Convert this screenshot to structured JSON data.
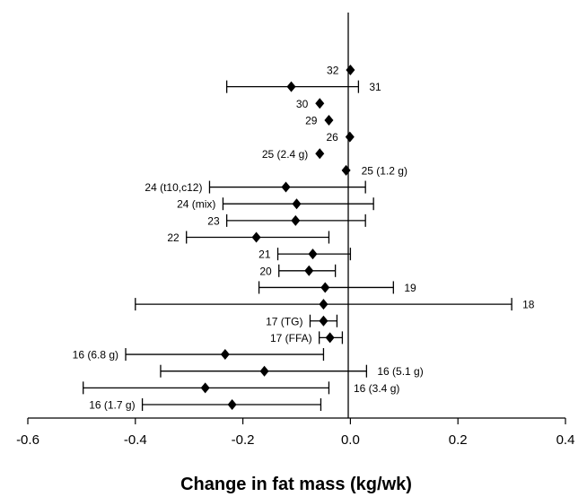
{
  "chart_data": {
    "type": "forest",
    "xlabel": "Change in fat mass (kg/wk)",
    "ylabel": "",
    "xlim": [
      -0.6,
      0.4
    ],
    "xticks": [
      -0.6,
      -0.4,
      -0.2,
      0.0,
      0.2,
      0.4
    ],
    "xtick_labels": [
      "-0.6",
      "-0.4",
      "-0.2",
      "0.0",
      "0.2",
      "0.4"
    ],
    "reference_line": 0.0,
    "grid": false,
    "marker": "diamond",
    "studies": [
      {
        "label": "32",
        "estimate": 0.0,
        "ci": null,
        "label_side": "left"
      },
      {
        "label": "31",
        "estimate": -0.11,
        "ci": [
          -0.23,
          0.015
        ],
        "label_side": "right"
      },
      {
        "label": "30",
        "estimate": -0.057,
        "ci": null,
        "label_side": "left"
      },
      {
        "label": "29",
        "estimate": -0.04,
        "ci": null,
        "label_side": "left"
      },
      {
        "label": "26",
        "estimate": -0.001,
        "ci": null,
        "label_side": "left"
      },
      {
        "label": "25 (2.4 g)",
        "estimate": -0.057,
        "ci": null,
        "label_side": "left"
      },
      {
        "label": "25 (1.2 g)",
        "estimate": -0.008,
        "ci": null,
        "label_side": "right"
      },
      {
        "label": "24 (t10,c12)",
        "estimate": -0.12,
        "ci": [
          -0.262,
          0.028
        ],
        "label_side": "left"
      },
      {
        "label": "24 (mix)",
        "estimate": -0.1,
        "ci": [
          -0.237,
          0.043
        ],
        "label_side": "left"
      },
      {
        "label": "23",
        "estimate": -0.102,
        "ci": [
          -0.23,
          0.028
        ],
        "label_side": "left"
      },
      {
        "label": "22",
        "estimate": -0.175,
        "ci": [
          -0.305,
          -0.04
        ],
        "label_side": "left"
      },
      {
        "label": "21",
        "estimate": -0.07,
        "ci": [
          -0.135,
          0.0
        ],
        "label_side": "left"
      },
      {
        "label": "20",
        "estimate": -0.077,
        "ci": [
          -0.133,
          -0.028
        ],
        "label_side": "left"
      },
      {
        "label": "19",
        "estimate": -0.047,
        "ci": [
          -0.17,
          0.08
        ],
        "label_side": "right"
      },
      {
        "label": "18",
        "estimate": -0.05,
        "ci": [
          -0.4,
          0.3
        ],
        "label_side": "right"
      },
      {
        "label": "17 (TG)",
        "estimate": -0.05,
        "ci": [
          -0.075,
          -0.025
        ],
        "label_side": "left"
      },
      {
        "label": "17 (FFA)",
        "estimate": -0.038,
        "ci": [
          -0.058,
          -0.015
        ],
        "label_side": "left"
      },
      {
        "label": "16 (6.8 g)",
        "estimate": -0.233,
        "ci": [
          -0.418,
          -0.05
        ],
        "label_side": "left"
      },
      {
        "label": "16 (5.1 g)",
        "estimate": -0.16,
        "ci": [
          -0.353,
          0.03
        ],
        "label_side": "right"
      },
      {
        "label": "16 (3.4 g)",
        "estimate": -0.27,
        "ci": [
          -0.497,
          -0.04
        ],
        "label_side": "right_below"
      },
      {
        "label": "16 (1.7 g)",
        "estimate": -0.22,
        "ci": [
          -0.387,
          -0.055
        ],
        "label_side": "left"
      }
    ]
  }
}
